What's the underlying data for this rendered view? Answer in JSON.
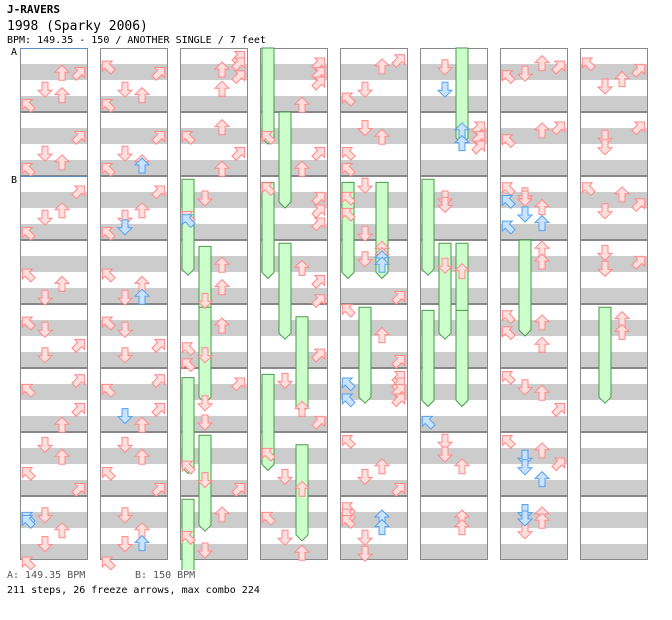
{
  "header": {
    "artist": "J-RAVERS",
    "title": "1998 (Sparky 2006)",
    "subtitle": "BPM: 149.35 - 150 / ANOTHER SINGLE / 7 feet"
  },
  "markers": [
    {
      "label": "A",
      "measure": 0,
      "beat": 0
    },
    {
      "label": "B",
      "measure": 2,
      "beat": 0
    }
  ],
  "footer": {
    "bpm_a": "A: 149.35 BPM",
    "bpm_b": "B: 150 BPM",
    "stats": "211 steps, 26 freeze arrows, max combo 224"
  },
  "colors": {
    "red": "#ff8888",
    "red_fill": "#ffdede",
    "blue": "#55a0ee",
    "blue_fill": "#c8e2ff",
    "freeze_stroke": "#4a9a4a",
    "freeze_fill": "#ccffcc",
    "stripe": "#cccccc",
    "border": "#888888",
    "marker_line": "#5a8ec8"
  },
  "chart": {
    "columns": 8,
    "measures_per_column": 8,
    "arrows": [
      [
        [
          0,
          0.6,
          2
        ],
        [
          0,
          0.6,
          3
        ],
        [
          0,
          1.1,
          1
        ],
        [
          0,
          1.3,
          2
        ],
        [
          0,
          1.6,
          0
        ],
        [
          1,
          0.6,
          3
        ],
        [
          1,
          1.1,
          1
        ],
        [
          1,
          1.4,
          2
        ],
        [
          1,
          1.6,
          0
        ],
        [
          2,
          0.3,
          3
        ],
        [
          2,
          0.9,
          2
        ],
        [
          2,
          1.1,
          1
        ],
        [
          2,
          1.6,
          0
        ],
        [
          3,
          0.9,
          0
        ],
        [
          3,
          1.2,
          2
        ],
        [
          3,
          1.6,
          1
        ],
        [
          4,
          0.4,
          0
        ],
        [
          4,
          0.6,
          1
        ],
        [
          4,
          1.1,
          3
        ],
        [
          4,
          1.4,
          1
        ],
        [
          5,
          0.2,
          3
        ],
        [
          5,
          0.5,
          0
        ],
        [
          5,
          1.1,
          3
        ],
        [
          5,
          1.6,
          2
        ],
        [
          6,
          0.2,
          1
        ],
        [
          6,
          0.6,
          2
        ],
        [
          6,
          1.1,
          0
        ],
        [
          6,
          1.6,
          3
        ],
        [
          7,
          0.4,
          1
        ],
        [
          7,
          0.9,
          2
        ],
        [
          7,
          1.3,
          1
        ],
        [
          7,
          1.9,
          0
        ]
      ],
      [
        [
          0,
          0.4,
          0
        ],
        [
          0,
          0.6,
          3
        ],
        [
          0,
          1.1,
          1
        ],
        [
          0,
          1.3,
          2
        ],
        [
          0,
          1.6,
          0
        ],
        [
          1,
          0.6,
          3
        ],
        [
          1,
          1.1,
          1
        ],
        [
          1,
          1.4,
          2
        ],
        [
          1,
          1.6,
          0
        ],
        [
          2,
          0.3,
          3
        ],
        [
          2,
          0.9,
          2
        ],
        [
          2,
          1.1,
          1
        ],
        [
          2,
          1.6,
          0
        ],
        [
          3,
          0.9,
          0
        ],
        [
          3,
          1.2,
          2
        ],
        [
          3,
          1.6,
          1
        ],
        [
          4,
          0.4,
          0
        ],
        [
          4,
          0.6,
          1
        ],
        [
          4,
          1.1,
          3
        ],
        [
          4,
          1.4,
          1
        ],
        [
          5,
          0.2,
          3
        ],
        [
          5,
          0.5,
          0
        ],
        [
          5,
          1.1,
          3
        ],
        [
          5,
          1.6,
          2
        ],
        [
          6,
          0.2,
          1
        ],
        [
          6,
          0.6,
          2
        ],
        [
          6,
          1.1,
          0
        ],
        [
          6,
          1.6,
          3
        ],
        [
          7,
          0.4,
          1
        ],
        [
          7,
          0.9,
          2
        ],
        [
          7,
          1.3,
          1
        ],
        [
          7,
          1.9,
          0
        ]
      ],
      [
        [
          0,
          0.1,
          3
        ],
        [
          0,
          0.3,
          3
        ],
        [
          0,
          0.5,
          2
        ],
        [
          0,
          0.7,
          3
        ],
        [
          0,
          1.1,
          2
        ],
        [
          1,
          0.3,
          2
        ],
        [
          1,
          0.6,
          0
        ],
        [
          1,
          1.1,
          3
        ],
        [
          1,
          1.6,
          2
        ],
        [
          2,
          0.5,
          1
        ],
        [
          2,
          1.1,
          0
        ],
        [
          3,
          0.6,
          2
        ],
        [
          3,
          1.3,
          2
        ],
        [
          3,
          1.7,
          1
        ],
        [
          4,
          0.5,
          2
        ],
        [
          4,
          1.2,
          0
        ],
        [
          4,
          1.4,
          1
        ],
        [
          4,
          1.7,
          0
        ],
        [
          5,
          0.3,
          3
        ],
        [
          5,
          0.9,
          1
        ],
        [
          5,
          1.5,
          1
        ],
        [
          6,
          0.9,
          0
        ],
        [
          6,
          1.3,
          1
        ],
        [
          6,
          1.6,
          3
        ],
        [
          7,
          0.4,
          2
        ],
        [
          7,
          1.1,
          0
        ],
        [
          7,
          1.5,
          1
        ]
      ],
      [
        [
          0,
          0.3,
          3
        ],
        [
          0,
          0.6,
          3
        ],
        [
          0,
          0.9,
          3
        ],
        [
          0,
          1.6,
          2
        ],
        [
          1,
          0.6,
          0
        ],
        [
          1,
          1.1,
          3
        ],
        [
          1,
          1.6,
          2
        ],
        [
          2,
          0.2,
          0
        ],
        [
          2,
          0.5,
          3
        ],
        [
          2,
          0.9,
          3
        ],
        [
          2,
          1.3,
          3
        ],
        [
          3,
          0.7,
          2
        ],
        [
          3,
          1.1,
          3
        ],
        [
          3,
          1.7,
          3
        ],
        [
          4,
          1.4,
          3
        ],
        [
          5,
          0.2,
          1
        ],
        [
          5,
          1.1,
          2
        ],
        [
          5,
          1.5,
          3
        ],
        [
          6,
          0.5,
          0
        ],
        [
          6,
          1.2,
          1
        ],
        [
          6,
          1.6,
          2
        ],
        [
          7,
          0.5,
          0
        ],
        [
          7,
          1.1,
          1
        ],
        [
          7,
          1.6,
          2
        ]
      ],
      [
        [
          0,
          0.2,
          3
        ],
        [
          0,
          0.4,
          2
        ],
        [
          0,
          1.1,
          1
        ],
        [
          0,
          1.4,
          0
        ],
        [
          1,
          0.3,
          1
        ],
        [
          1,
          0.6,
          2
        ],
        [
          1,
          1.1,
          0
        ],
        [
          1,
          1.6,
          0
        ],
        [
          2,
          0.1,
          1
        ],
        [
          2,
          0.5,
          0
        ],
        [
          2,
          1.0,
          0
        ],
        [
          2,
          1.6,
          1
        ],
        [
          3,
          0.1,
          2
        ],
        [
          3,
          0.3,
          2
        ],
        [
          3,
          0.4,
          1
        ],
        [
          3,
          1.6,
          3
        ],
        [
          4,
          0.0,
          0
        ],
        [
          4,
          0.8,
          2
        ],
        [
          4,
          1.6,
          3
        ],
        [
          5,
          0.1,
          3
        ],
        [
          5,
          0.3,
          3
        ],
        [
          5,
          0.5,
          3
        ],
        [
          5,
          0.8,
          3
        ],
        [
          6,
          0.1,
          0
        ],
        [
          6,
          0.9,
          2
        ],
        [
          6,
          1.2,
          1
        ],
        [
          6,
          1.6,
          3
        ],
        [
          7,
          0.2,
          0
        ],
        [
          7,
          0.4,
          0
        ],
        [
          7,
          0.6,
          0
        ],
        [
          7,
          1.1,
          1
        ],
        [
          7,
          1.6,
          1
        ]
      ],
      [
        [
          0,
          0.4,
          1
        ],
        [
          1,
          0.3,
          3
        ],
        [
          1,
          0.6,
          3
        ],
        [
          1,
          0.9,
          3
        ],
        [
          2,
          0.5,
          1
        ],
        [
          2,
          0.7,
          1
        ],
        [
          3,
          0.6,
          1
        ],
        [
          3,
          0.8,
          2
        ],
        [
          6,
          0.1,
          1
        ],
        [
          6,
          0.5,
          1
        ],
        [
          6,
          0.9,
          2
        ],
        [
          7,
          0.5,
          2
        ],
        [
          7,
          0.8,
          2
        ]
      ],
      [
        [
          0,
          0.3,
          2
        ],
        [
          0,
          0.4,
          3
        ],
        [
          0,
          0.6,
          1
        ],
        [
          0,
          0.7,
          0
        ],
        [
          1,
          0.3,
          3
        ],
        [
          1,
          0.4,
          2
        ],
        [
          1,
          0.7,
          0
        ],
        [
          2,
          0.2,
          0
        ],
        [
          2,
          0.4,
          1
        ],
        [
          2,
          0.5,
          1
        ],
        [
          2,
          0.8,
          2
        ],
        [
          3,
          0.1,
          2
        ],
        [
          3,
          0.5,
          2
        ],
        [
          4,
          0.2,
          0
        ],
        [
          4,
          0.4,
          2
        ],
        [
          4,
          0.7,
          0
        ],
        [
          4,
          1.1,
          2
        ],
        [
          5,
          0.1,
          0
        ],
        [
          5,
          0.4,
          1
        ],
        [
          5,
          0.6,
          2
        ],
        [
          5,
          1.1,
          3
        ],
        [
          6,
          0.1,
          0
        ],
        [
          6,
          0.4,
          2
        ],
        [
          6,
          0.6,
          1
        ],
        [
          6,
          0.8,
          3
        ],
        [
          7,
          0.3,
          1
        ],
        [
          7,
          0.4,
          2
        ],
        [
          7,
          0.6,
          2
        ],
        [
          7,
          0.9,
          1
        ]
      ],
      [
        [
          0,
          0.3,
          0
        ],
        [
          0,
          0.5,
          3
        ],
        [
          0,
          0.8,
          2
        ],
        [
          0,
          1.0,
          1
        ],
        [
          1,
          0.3,
          3
        ],
        [
          1,
          0.6,
          1
        ],
        [
          1,
          0.9,
          1
        ],
        [
          2,
          0.2,
          0
        ],
        [
          2,
          0.4,
          2
        ],
        [
          2,
          0.7,
          3
        ],
        [
          2,
          0.9,
          1
        ],
        [
          3,
          0.2,
          1
        ],
        [
          3,
          0.5,
          3
        ],
        [
          3,
          0.7,
          1
        ],
        [
          4,
          0.3,
          2
        ],
        [
          4,
          0.7,
          2
        ]
      ]
    ],
    "blue_arrows": [
      [
        [
          7,
          0.5,
          0
        ],
        [
          7,
          0.6,
          0
        ]
      ],
      [
        [
          1,
          1.5,
          2
        ],
        [
          2,
          1.4,
          1
        ],
        [
          3,
          1.6,
          2
        ],
        [
          5,
          1.3,
          1
        ],
        [
          7,
          1.3,
          2
        ]
      ],
      [
        [
          2,
          1.2,
          0
        ]
      ],
      [],
      [
        [
          3,
          0.4,
          2
        ],
        [
          3,
          0.6,
          2
        ],
        [
          5,
          0.3,
          0
        ],
        [
          5,
          0.8,
          0
        ],
        [
          7,
          0.5,
          2
        ],
        [
          7,
          0.8,
          2
        ]
      ],
      [
        [
          0,
          1.1,
          1
        ],
        [
          1,
          0.4,
          2
        ],
        [
          1,
          0.8,
          2
        ],
        [
          5,
          1.5,
          0
        ]
      ],
      [
        [
          2,
          0.6,
          0
        ],
        [
          2,
          1.0,
          1
        ],
        [
          2,
          1.3,
          2
        ],
        [
          2,
          1.4,
          0
        ],
        [
          6,
          0.6,
          1
        ],
        [
          6,
          0.9,
          1
        ],
        [
          6,
          1.3,
          2
        ],
        [
          7,
          0.3,
          1
        ],
        [
          7,
          0.5,
          1
        ]
      ],
      []
    ],
    "freezes": [
      [],
      [],
      [
        [
          2,
          0.1,
          3,
          0
        ],
        [
          3,
          0.2,
          3,
          1
        ],
        [
          4,
          0.1,
          3,
          1
        ],
        [
          5,
          0.3,
          3,
          0
        ],
        [
          6,
          0.1,
          3,
          1
        ],
        [
          7,
          0.1,
          3,
          0
        ]
      ],
      [
        [
          0,
          0.0,
          3,
          0
        ],
        [
          1,
          0.0,
          3,
          1
        ],
        [
          2,
          0.2,
          3,
          0
        ],
        [
          3,
          0.1,
          3,
          1
        ],
        [
          4,
          0.4,
          3,
          2
        ],
        [
          5,
          0.2,
          3,
          0
        ],
        [
          6,
          0.4,
          3,
          2
        ]
      ],
      [
        [
          2,
          0.2,
          3,
          0
        ],
        [
          2,
          0.2,
          3,
          2
        ],
        [
          4,
          0.1,
          3,
          1
        ]
      ],
      [
        [
          0,
          0.0,
          3,
          2
        ],
        [
          2,
          0.1,
          3,
          0
        ],
        [
          3,
          0.1,
          3,
          1
        ],
        [
          3,
          0.1,
          3,
          2
        ],
        [
          4,
          0.2,
          3,
          0
        ],
        [
          4,
          0.2,
          3,
          2
        ]
      ],
      [
        [
          3,
          0.0,
          3,
          1
        ]
      ],
      [
        [
          4,
          0.1,
          3,
          1
        ]
      ]
    ]
  }
}
